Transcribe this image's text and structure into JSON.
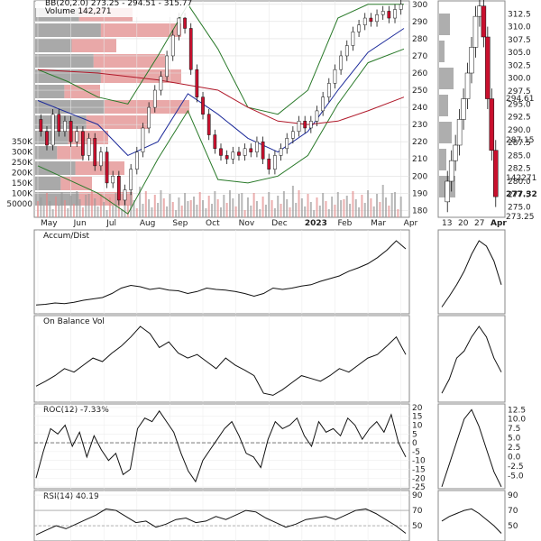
{
  "chart_data": [
    {
      "type": "candlestick",
      "panel": "price",
      "legend": {
        "bb": "BB(20,2.0) 273.25 - 294.51 - 315.77",
        "volume": "Volume 142,271"
      },
      "x_ticks": [
        "May",
        "Jun",
        "Jul",
        "Aug",
        "Sep",
        "Oct",
        "Nov",
        "Dec",
        "2023",
        "Feb",
        "Mar",
        "Apr"
      ],
      "y_ticks": [
        180,
        190,
        200,
        210,
        220,
        230,
        240,
        250,
        260,
        270,
        280,
        290,
        300
      ],
      "ylim": [
        176,
        302
      ],
      "volume_ticks": [
        "350K",
        "300K",
        "250K",
        "200K",
        "150K",
        "100K",
        "50000"
      ],
      "close_path": [
        [
          0,
          233
        ],
        [
          2,
          226
        ],
        [
          4,
          218
        ],
        [
          6,
          236
        ],
        [
          8,
          226
        ],
        [
          10,
          232
        ],
        [
          12,
          220
        ],
        [
          14,
          226
        ],
        [
          16,
          212
        ],
        [
          18,
          222
        ],
        [
          20,
          206
        ],
        [
          22,
          214
        ],
        [
          24,
          196
        ],
        [
          26,
          200
        ],
        [
          28,
          186
        ],
        [
          30,
          192
        ],
        [
          32,
          204
        ],
        [
          34,
          214
        ],
        [
          36,
          228
        ],
        [
          38,
          240
        ],
        [
          40,
          250
        ],
        [
          42,
          258
        ],
        [
          44,
          270
        ],
        [
          46,
          282
        ],
        [
          48,
          292
        ],
        [
          50,
          286
        ],
        [
          52,
          262
        ],
        [
          54,
          246
        ],
        [
          56,
          236
        ],
        [
          58,
          224
        ],
        [
          60,
          216
        ],
        [
          62,
          212
        ],
        [
          64,
          210
        ],
        [
          66,
          214
        ],
        [
          68,
          212
        ],
        [
          70,
          216
        ],
        [
          72,
          214
        ],
        [
          74,
          220
        ],
        [
          76,
          210
        ],
        [
          78,
          204
        ],
        [
          80,
          212
        ],
        [
          82,
          216
        ],
        [
          84,
          222
        ],
        [
          86,
          226
        ],
        [
          88,
          232
        ],
        [
          90,
          228
        ],
        [
          92,
          232
        ],
        [
          94,
          238
        ],
        [
          96,
          246
        ],
        [
          98,
          254
        ],
        [
          100,
          262
        ],
        [
          102,
          270
        ],
        [
          104,
          276
        ],
        [
          106,
          284
        ],
        [
          108,
          288
        ],
        [
          110,
          292
        ],
        [
          112,
          290
        ],
        [
          114,
          294
        ],
        [
          116,
          296
        ],
        [
          118,
          292
        ],
        [
          120,
          297
        ],
        [
          122,
          300
        ]
      ],
      "x_domain": [
        0,
        122
      ],
      "bollinger_upper": [
        [
          0,
          262
        ],
        [
          10,
          255
        ],
        [
          20,
          246
        ],
        [
          30,
          242
        ],
        [
          40,
          270
        ],
        [
          50,
          300
        ],
        [
          60,
          274
        ],
        [
          70,
          240
        ],
        [
          80,
          236
        ],
        [
          90,
          250
        ],
        [
          100,
          292
        ],
        [
          110,
          300
        ],
        [
          122,
          300
        ]
      ],
      "bollinger_lower": [
        [
          0,
          206
        ],
        [
          10,
          198
        ],
        [
          20,
          190
        ],
        [
          30,
          178
        ],
        [
          40,
          210
        ],
        [
          50,
          238
        ],
        [
          60,
          198
        ],
        [
          70,
          196
        ],
        [
          80,
          200
        ],
        [
          90,
          212
        ],
        [
          100,
          242
        ],
        [
          110,
          266
        ],
        [
          122,
          274
        ]
      ],
      "sma_50": [
        [
          0,
          244
        ],
        [
          20,
          230
        ],
        [
          30,
          212
        ],
        [
          40,
          220
        ],
        [
          50,
          248
        ],
        [
          60,
          236
        ],
        [
          70,
          222
        ],
        [
          80,
          214
        ],
        [
          90,
          226
        ],
        [
          100,
          250
        ],
        [
          110,
          272
        ],
        [
          122,
          286
        ]
      ],
      "sma_200": [
        [
          0,
          262
        ],
        [
          20,
          260
        ],
        [
          40,
          256
        ],
        [
          60,
          250
        ],
        [
          70,
          240
        ],
        [
          80,
          232
        ],
        [
          90,
          230
        ],
        [
          100,
          232
        ],
        [
          110,
          238
        ],
        [
          122,
          246
        ]
      ]
    },
    {
      "type": "candlestick",
      "panel": "price-zoom",
      "x_ticks": [
        "13",
        "20",
        "27",
        "Apr"
      ],
      "y_ticks": [
        275.0,
        277.5,
        280.0,
        282.5,
        285.0,
        287.5,
        290.0,
        292.5,
        295.0,
        297.5,
        300.0,
        302.5,
        305.0,
        307.5,
        310.0,
        312.5
      ],
      "ylim": [
        273,
        315
      ],
      "price_labels": [
        "294.61",
        "287.15",
        "142271",
        "277.32",
        "273.25"
      ],
      "close_path": [
        [
          0,
          276
        ],
        [
          2,
          280
        ],
        [
          4,
          284
        ],
        [
          6,
          287
        ],
        [
          8,
          292
        ],
        [
          10,
          296
        ],
        [
          12,
          301
        ],
        [
          14,
          306
        ],
        [
          16,
          312
        ],
        [
          18,
          314
        ],
        [
          20,
          308
        ],
        [
          22,
          296
        ],
        [
          24,
          286
        ],
        [
          26,
          277
        ]
      ]
    },
    {
      "type": "line",
      "panel": "indicator",
      "title": "Accum/Dist",
      "values": [
        0.05,
        0.06,
        0.08,
        0.07,
        0.09,
        0.12,
        0.14,
        0.16,
        0.22,
        0.3,
        0.34,
        0.32,
        0.28,
        0.3,
        0.27,
        0.26,
        0.22,
        0.25,
        0.3,
        0.28,
        0.27,
        0.25,
        0.22,
        0.18,
        0.22,
        0.3,
        0.28,
        0.3,
        0.33,
        0.35,
        0.4,
        0.44,
        0.48,
        0.55,
        0.6,
        0.66,
        0.75,
        0.86,
        1.0,
        0.88
      ],
      "zoom_values": [
        0.02,
        0.18,
        0.35,
        0.55,
        0.8,
        1.0,
        0.92,
        0.7,
        0.35
      ]
    },
    {
      "type": "line",
      "panel": "indicator",
      "title": "On Balance Vol",
      "values": [
        0.15,
        0.22,
        0.3,
        0.4,
        0.35,
        0.45,
        0.55,
        0.5,
        0.62,
        0.72,
        0.85,
        1.0,
        0.9,
        0.7,
        0.78,
        0.62,
        0.55,
        0.6,
        0.5,
        0.4,
        0.55,
        0.45,
        0.38,
        0.3,
        0.05,
        0.02,
        0.1,
        0.2,
        0.3,
        0.26,
        0.22,
        0.3,
        0.4,
        0.35,
        0.45,
        0.55,
        0.6,
        0.72,
        0.85,
        0.6
      ],
      "zoom_values": [
        0.05,
        0.25,
        0.55,
        0.65,
        0.85,
        1.0,
        0.85,
        0.55,
        0.35
      ]
    },
    {
      "type": "line",
      "panel": "indicator",
      "title": "ROC(12) -7.33%",
      "y_ticks": [
        20,
        15,
        10,
        5,
        0,
        -5,
        -10,
        -15,
        -20,
        -25
      ],
      "ylim": [
        -26,
        22
      ],
      "zero_line": 0,
      "values": [
        -20,
        -5,
        8,
        5,
        10,
        -2,
        6,
        -8,
        4,
        -4,
        -10,
        -6,
        -18,
        -15,
        8,
        14,
        12,
        18,
        12,
        6,
        -6,
        -16,
        -22,
        -10,
        -4,
        2,
        8,
        12,
        4,
        -6,
        -8,
        -14,
        2,
        12,
        8,
        10,
        14,
        4,
        -2,
        12,
        6,
        8,
        4,
        14,
        10,
        2,
        8,
        12,
        6,
        16,
        0,
        -8
      ],
      "zoom_values": [
        -8,
        -2,
        4,
        10,
        12.5,
        8,
        2,
        -4,
        -8
      ]
    },
    {
      "type": "line",
      "panel": "indicator",
      "title": "RSI(14) 40.19",
      "y_ticks": [
        90,
        70,
        50
      ],
      "ylim": [
        30,
        96
      ],
      "values": [
        38,
        44,
        50,
        46,
        52,
        58,
        64,
        72,
        70,
        62,
        54,
        56,
        48,
        52,
        58,
        60,
        54,
        56,
        62,
        58,
        64,
        70,
        68,
        60,
        54,
        48,
        52,
        58,
        60,
        62,
        58,
        64,
        70,
        72,
        66,
        58,
        50,
        40
      ],
      "zoom_values": [
        56,
        62,
        66,
        70,
        72,
        66,
        58,
        50,
        40
      ]
    }
  ]
}
